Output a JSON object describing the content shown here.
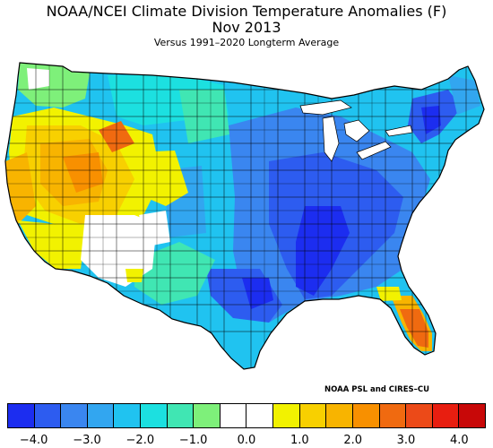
{
  "title_line1": "NOAA/NCEI Climate Division Temperature Anomalies (F)",
  "title_line2": "Nov 2013",
  "subtitle": "Versus 1991–2020 Longterm Average",
  "credit": "NOAA PSL and CIRES–CU",
  "legend": {
    "colors": [
      "#1c2df0",
      "#2d5cf0",
      "#3a86f0",
      "#32a6f0",
      "#20c3f0",
      "#1ce0e0",
      "#40e6b3",
      "#7ef07a",
      "#ffffff",
      "#ffffff",
      "#f2f200",
      "#f8d000",
      "#f8b400",
      "#f89000",
      "#f06a10",
      "#ec4a18",
      "#e81e10",
      "#c80808"
    ],
    "ticks": [
      "−4.0",
      "−3.0",
      "−2.0",
      "−1.0",
      "0.0",
      "1.0",
      "2.0",
      "3.0",
      "4.0"
    ]
  },
  "map": {
    "ocean_color": "#ffffff",
    "lake_color": "#ffffff",
    "border_color": "#000000"
  }
}
